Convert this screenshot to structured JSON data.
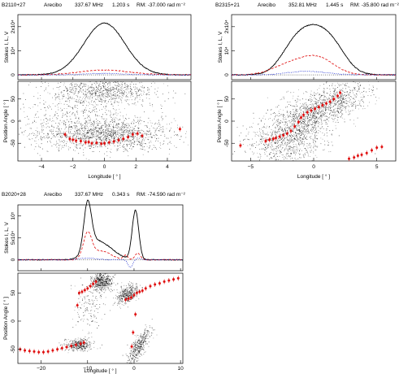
{
  "chart_data": [
    {
      "type": "line",
      "header": {
        "source": "B2110+27",
        "telescope": "Arecibo",
        "freq": "337.67 MHz",
        "period": "1.203 s",
        "rm": "RM:  -37.000 rad m⁻²"
      },
      "profile": {
        "ylabel": "Stokes I, L, V",
        "yticks": [
          {
            "v": 0,
            "t": "0"
          },
          {
            "v": 10000,
            "t": "10⁴"
          },
          {
            "v": 20000,
            "t": "2x10⁴"
          }
        ],
        "ylim": [
          -2000,
          25000
        ],
        "series": [
          {
            "key": "I",
            "color": "#000000",
            "dash": "",
            "comps": [
              [
                0,
                21500,
                1.3
              ]
            ],
            "floor": 0
          },
          {
            "key": "L",
            "color": "#e01010",
            "dash": "3,2",
            "comps": [
              [
                0,
                2000,
                1.6
              ]
            ],
            "floor": 0
          },
          {
            "key": "V",
            "color": "#2030d0",
            "dash": "1,1.5",
            "comps": [
              [
                0,
                600,
                1.2
              ]
            ],
            "floor": 0
          }
        ]
      },
      "pa": {
        "ylabel": "Position Angle [ ° ]",
        "ylim": [
          -90,
          90
        ],
        "yticks": [
          -50,
          0,
          50
        ],
        "points": [
          [
            -2.2,
            -40
          ],
          [
            -2.0,
            -42
          ],
          [
            -1.8,
            -44
          ],
          [
            -1.5,
            -45
          ],
          [
            -1.2,
            -48
          ],
          [
            -1.0,
            -47
          ],
          [
            -0.8,
            -50
          ],
          [
            -0.5,
            -49
          ],
          [
            -0.2,
            -51
          ],
          [
            0.0,
            -50
          ],
          [
            0.3,
            -48
          ],
          [
            0.6,
            -46
          ],
          [
            0.9,
            -43
          ],
          [
            1.2,
            -40
          ],
          [
            1.5,
            -36
          ],
          [
            1.8,
            -30
          ],
          [
            2.1,
            -28
          ],
          [
            -2.5,
            -30
          ],
          [
            2.4,
            -33
          ],
          [
            4.8,
            -18
          ]
        ]
      },
      "xaxis": {
        "label": "Longitude [ ° ]",
        "xlim": [
          -5.5,
          5.5
        ],
        "ticks": [
          -4,
          -2,
          0,
          2,
          4
        ]
      }
    },
    {
      "type": "line",
      "header": {
        "source": "B2315+21",
        "telescope": "Arecibo",
        "freq": "352.81 MHz",
        "period": "1.445 s",
        "rm": "RM:  -35.800 rad m⁻²"
      },
      "profile": {
        "ylabel": "Stokes I, L, V",
        "yticks": [
          {
            "v": 0,
            "t": "0"
          },
          {
            "v": 10000,
            "t": "10⁴"
          },
          {
            "v": 20000,
            "t": "2x10⁴"
          }
        ],
        "ylim": [
          -2000,
          25000
        ],
        "series": [
          {
            "key": "I",
            "color": "#000000",
            "dash": "",
            "comps": [
              [
                0,
                19000,
                1.5
              ],
              [
                -1.8,
                5000,
                1.0
              ],
              [
                1.8,
                4500,
                1.0
              ]
            ],
            "floor": 0
          },
          {
            "key": "L",
            "color": "#e01010",
            "dash": "3,2",
            "comps": [
              [
                0.3,
                7000,
                1.3
              ],
              [
                -2,
                4000,
                1.3
              ]
            ],
            "floor": 0
          },
          {
            "key": "V",
            "color": "#2030d0",
            "dash": "1,1.5",
            "comps": [
              [
                -0.5,
                1500,
                1.5
              ]
            ],
            "floor": 0
          }
        ]
      },
      "pa": {
        "ylabel": "Position Angle [ ° ]",
        "ylim": [
          -90,
          90
        ],
        "yticks": [
          -50,
          0,
          50
        ],
        "points": [
          [
            -3.8,
            -45
          ],
          [
            -3.5,
            -42
          ],
          [
            -3.2,
            -40
          ],
          [
            -3.0,
            -38
          ],
          [
            -2.7,
            -35
          ],
          [
            -2.4,
            -32
          ],
          [
            -2.1,
            -28
          ],
          [
            -1.8,
            -22
          ],
          [
            -1.5,
            -12
          ],
          [
            -1.2,
            -2
          ],
          [
            -1.0,
            8
          ],
          [
            -0.8,
            14
          ],
          [
            -0.5,
            20
          ],
          [
            -0.2,
            24
          ],
          [
            0.1,
            28
          ],
          [
            0.4,
            32
          ],
          [
            0.7,
            36
          ],
          [
            1.0,
            40
          ],
          [
            1.3,
            44
          ],
          [
            1.6,
            50
          ],
          [
            1.9,
            57
          ],
          [
            2.1,
            64
          ],
          [
            2.8,
            -85
          ],
          [
            3.2,
            -82
          ],
          [
            3.5,
            -78
          ],
          [
            3.8,
            -76
          ],
          [
            4.2,
            -72
          ],
          [
            4.6,
            -66
          ],
          [
            5.0,
            -60
          ],
          [
            5.4,
            -58
          ],
          [
            -5.8,
            -55
          ]
        ]
      },
      "xaxis": {
        "label": "Longitude [ ° ]",
        "xlim": [
          -6.5,
          6.5
        ],
        "ticks": [
          -5,
          0,
          5
        ]
      }
    },
    {
      "type": "line",
      "header": {
        "source": "B2020+28",
        "telescope": "Arecibo",
        "freq": "337.67 MHz",
        "period": "0.343 s",
        "rm": "RM:  -74.590 rad m⁻²"
      },
      "profile": {
        "ylabel": "Stokes I, L, V",
        "yticks": [
          {
            "v": 0,
            "t": "0"
          },
          {
            "v": 50000,
            "t": "5x10⁴"
          },
          {
            "v": 100000,
            "t": "10⁵"
          }
        ],
        "ylim": [
          -25000,
          125000
        ],
        "series": [
          {
            "key": "I",
            "color": "#000000",
            "dash": "",
            "comps": [
              [
                -10,
                105000,
                0.8
              ],
              [
                0.3,
                112000,
                0.7
              ],
              [
                -6.5,
                30000,
                2.5
              ],
              [
                -9,
                22000,
                1.8
              ]
            ],
            "floor": 0
          },
          {
            "key": "L",
            "color": "#e01010",
            "dash": "3,2",
            "comps": [
              [
                -10,
                58000,
                0.9
              ],
              [
                -7,
                20000,
                2.0
              ],
              [
                -1.8,
                10000,
                0.5
              ],
              [
                0.8,
                15000,
                0.6
              ]
            ],
            "floor": 0
          },
          {
            "key": "V",
            "color": "#2030d0",
            "dash": "1,1.5",
            "comps": [
              [
                -10,
                4000,
                1.8
              ],
              [
                -0.8,
                -17000,
                0.5
              ],
              [
                1.0,
                4000,
                0.6
              ]
            ],
            "floor": 0
          }
        ]
      },
      "pa": {
        "ylabel": "Position Angle [ ° ]",
        "ylim": [
          -75,
          85
        ],
        "yticks": [
          -50,
          0,
          50
        ],
        "points": [
          [
            -24.5,
            -50
          ],
          [
            -23.5,
            -52
          ],
          [
            -22.5,
            -53
          ],
          [
            -21.5,
            -54
          ],
          [
            -20.5,
            -55
          ],
          [
            -19.5,
            -55
          ],
          [
            -18.5,
            -54
          ],
          [
            -17.5,
            -52
          ],
          [
            -16.5,
            -50
          ],
          [
            -15.5,
            -48
          ],
          [
            -14.5,
            -46
          ],
          [
            -13.5,
            -44
          ],
          [
            -12.5,
            -42
          ],
          [
            -11.5,
            -40
          ],
          [
            -10.8,
            -38
          ],
          [
            -11.8,
            50
          ],
          [
            -11.2,
            52
          ],
          [
            -10.6,
            55
          ],
          [
            -10.0,
            58
          ],
          [
            -9.4,
            62
          ],
          [
            -8.8,
            66
          ],
          [
            -8.2,
            70
          ],
          [
            -1.8,
            38
          ],
          [
            -1.2,
            40
          ],
          [
            -0.6,
            42
          ],
          [
            0.0,
            46
          ],
          [
            0.6,
            50
          ],
          [
            1.2,
            52
          ],
          [
            1.8,
            54
          ],
          [
            2.5,
            58
          ],
          [
            3.5,
            62
          ],
          [
            4.5,
            65
          ],
          [
            5.5,
            67
          ],
          [
            6.5,
            70
          ],
          [
            7.5,
            72
          ],
          [
            8.5,
            74
          ],
          [
            9.5,
            76
          ],
          [
            -0.5,
            -45
          ],
          [
            -0.2,
            -20
          ],
          [
            0.3,
            12
          ],
          [
            -12.2,
            28
          ]
        ]
      },
      "xaxis": {
        "label": "Longitude [ ° ]",
        "xlim": [
          -25,
          10.5
        ],
        "ticks": [
          -20,
          -10,
          0,
          10
        ]
      }
    }
  ]
}
